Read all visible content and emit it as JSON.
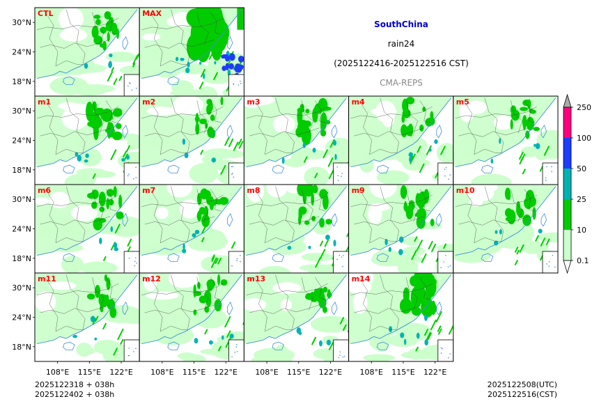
{
  "chart_data": {
    "type": "heatmap",
    "title": "SouthChina",
    "variable": "rain24",
    "period": "(2025122416-2025122516 CST)",
    "source": "CMA-REPS",
    "title_color": "#0000cc",
    "member_label_color": "#ff0000",
    "panels": [
      {
        "id": "CTL",
        "intensity": 0.9
      },
      {
        "id": "MAX",
        "intensity": 2.6
      },
      {
        "id": "m1",
        "intensity": 1.4
      },
      {
        "id": "m2",
        "intensity": 0.8
      },
      {
        "id": "m3",
        "intensity": 1.3
      },
      {
        "id": "m4",
        "intensity": 0.9
      },
      {
        "id": "m5",
        "intensity": 0.9
      },
      {
        "id": "m6",
        "intensity": 1.0
      },
      {
        "id": "m7",
        "intensity": 1.0
      },
      {
        "id": "m8",
        "intensity": 1.1
      },
      {
        "id": "m9",
        "intensity": 1.0
      },
      {
        "id": "m10",
        "intensity": 1.0
      },
      {
        "id": "m11",
        "intensity": 0.8
      },
      {
        "id": "m12",
        "intensity": 0.9
      },
      {
        "id": "m13",
        "intensity": 0.9
      },
      {
        "id": "m14",
        "intensity": 1.6
      }
    ],
    "lat_ticks": [
      "30°N",
      "24°N",
      "18°N"
    ],
    "lon_ticks": [
      "108°E",
      "115°E",
      "122°E"
    ],
    "lat_values": [
      30,
      24,
      18
    ],
    "lon_values": [
      108,
      115,
      122
    ],
    "lat_range": [
      15,
      33
    ],
    "lon_range": [
      103,
      126
    ],
    "colorbar": {
      "labels": [
        "0.1",
        "10",
        "25",
        "50",
        "100",
        "250"
      ],
      "levels": [
        0.1,
        10,
        25,
        50,
        100,
        250
      ],
      "colors": [
        "#ccffcc",
        "#00cc00",
        "#00b3b3",
        "#1e3cff",
        "#ff0080"
      ],
      "under_color": "#ffffff",
      "over_color": "#aaaaaa"
    },
    "init_lines": [
      "2025122318  +  038h",
      "2025122402  +  038h"
    ],
    "valid_lines": [
      "2025122508(UTC)",
      "2025122516(CST)"
    ]
  }
}
